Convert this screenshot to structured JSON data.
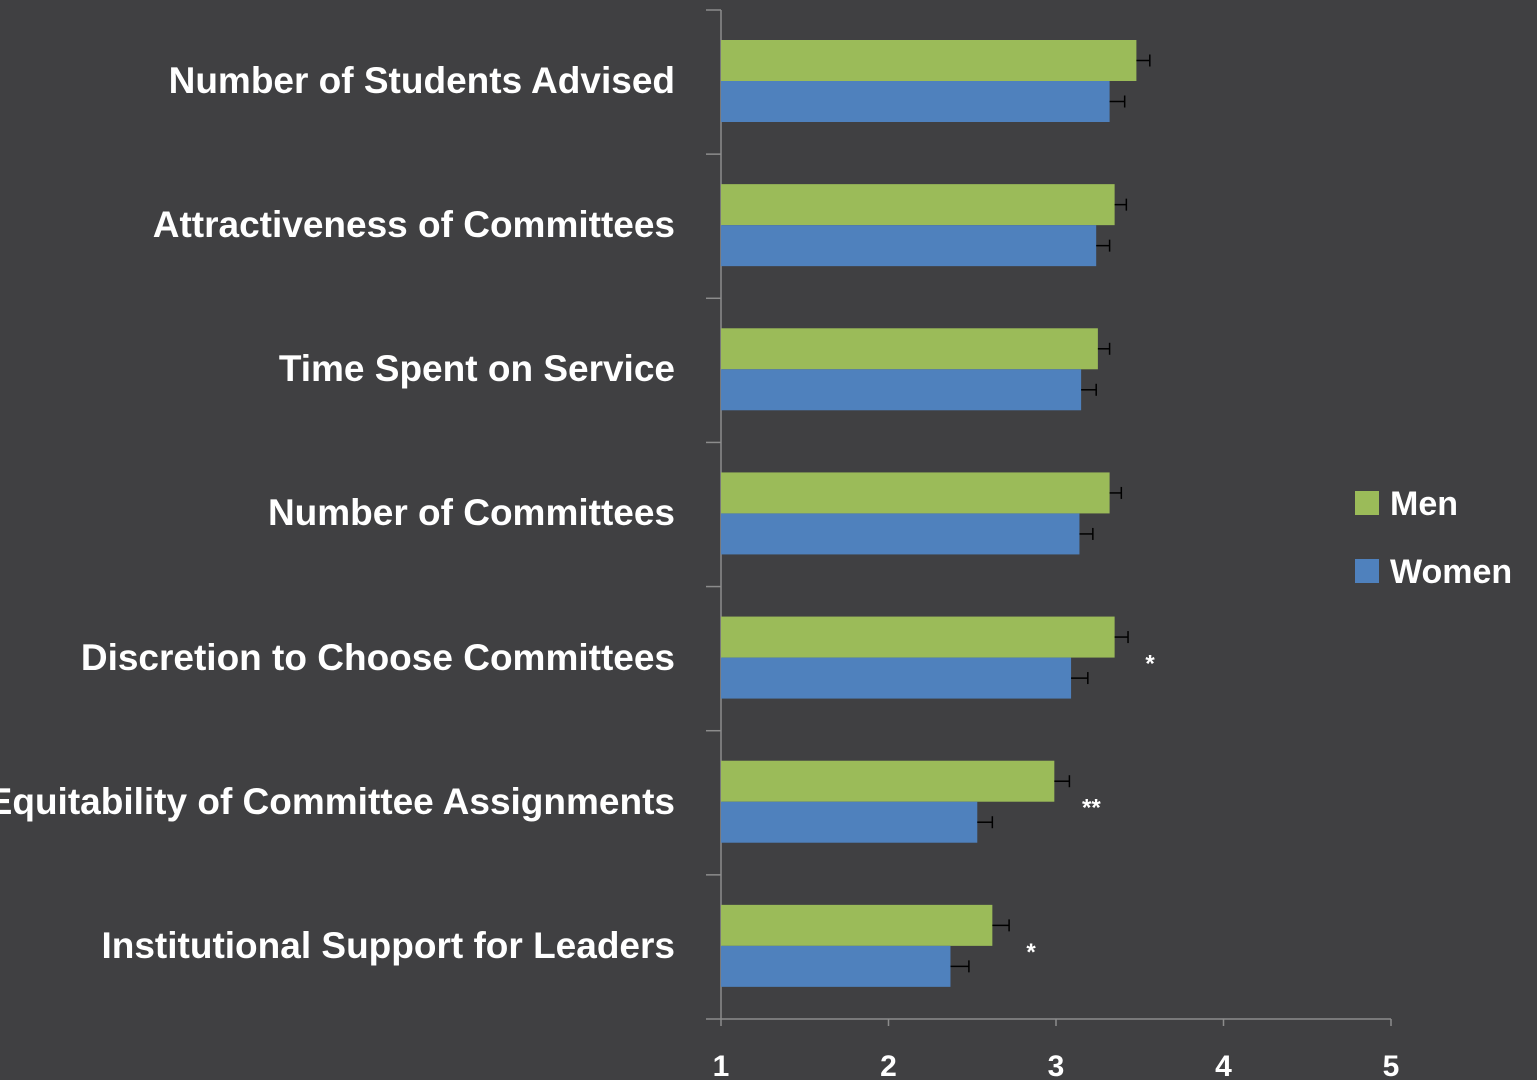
{
  "chart_data": {
    "type": "hbar",
    "categories": [
      "Number of Students Advised",
      "Attractiveness of Committees",
      "Time Spent on Service",
      "Number of Committees",
      "Discretion to Choose Committees",
      "Equitability of Committee Assignments",
      "Institutional Support for Leaders"
    ],
    "series": [
      {
        "name": "Men",
        "color": "#9bbb59",
        "values": [
          3.48,
          3.35,
          3.25,
          3.32,
          3.35,
          2.99,
          2.62
        ],
        "errors": [
          0.08,
          0.07,
          0.07,
          0.07,
          0.08,
          0.09,
          0.1
        ]
      },
      {
        "name": "Women",
        "color": "#4f81bd",
        "values": [
          3.32,
          3.24,
          3.15,
          3.14,
          3.09,
          2.53,
          2.37
        ],
        "errors": [
          0.09,
          0.08,
          0.09,
          0.08,
          0.1,
          0.09,
          0.11
        ]
      }
    ],
    "xlim": [
      1,
      5
    ],
    "xticks": [
      1,
      2,
      3,
      4,
      5
    ],
    "annotations": [
      {
        "text": "*",
        "category": "Discretion to Choose Committees"
      },
      {
        "text": "**",
        "category": "Equitability of Committee Assignments"
      },
      {
        "text": "*",
        "category": "Institutional Support for Leaders"
      }
    ],
    "legend": "right"
  }
}
